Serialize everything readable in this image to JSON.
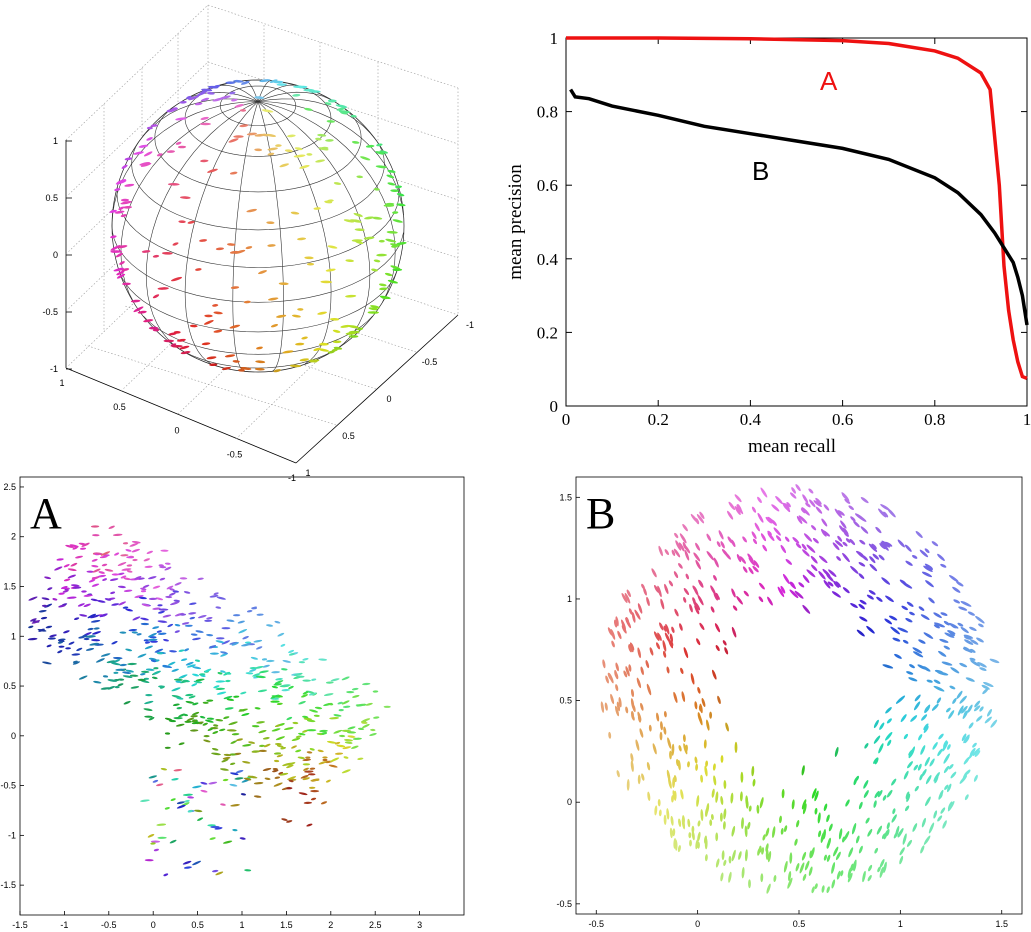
{
  "chart_data": [
    {
      "type": "scatter",
      "panel": "sphere-3d",
      "description_shown": "3D unit sphere with oriented glyphs",
      "z_ticks": [
        "1",
        "0.5",
        "0",
        "-0.5",
        "-1"
      ],
      "x_ticks": [
        "1",
        "0.5",
        "0",
        "-0.5",
        "-1"
      ],
      "y_ticks": [
        "-1",
        "-0.5",
        "0",
        "0.5",
        "1"
      ]
    },
    {
      "type": "line",
      "panel": "precision-recall",
      "xlabel": "mean recall",
      "ylabel": "mean precision",
      "xlim": [
        0,
        1
      ],
      "ylim": [
        0,
        1
      ],
      "x_ticks": [
        "0",
        "0.2",
        "0.4",
        "0.6",
        "0.8",
        "1"
      ],
      "y_ticks": [
        "0",
        "0.2",
        "0.4",
        "0.6",
        "0.8",
        "1"
      ],
      "series": [
        {
          "name": "A",
          "color": "#ee1111",
          "x": [
            0,
            0.2,
            0.4,
            0.6,
            0.7,
            0.8,
            0.85,
            0.9,
            0.92,
            0.94,
            0.95,
            0.96,
            0.97,
            0.98,
            0.99,
            1.0
          ],
          "y": [
            1.0,
            1.0,
            0.998,
            0.993,
            0.985,
            0.965,
            0.945,
            0.905,
            0.86,
            0.6,
            0.38,
            0.26,
            0.18,
            0.12,
            0.08,
            0.075
          ]
        },
        {
          "name": "B",
          "color": "#000000",
          "x": [
            0.01,
            0.02,
            0.05,
            0.1,
            0.2,
            0.3,
            0.4,
            0.5,
            0.6,
            0.7,
            0.8,
            0.85,
            0.9,
            0.93,
            0.95,
            0.97,
            0.98,
            0.99,
            1.0
          ],
          "y": [
            0.86,
            0.84,
            0.835,
            0.815,
            0.79,
            0.76,
            0.74,
            0.72,
            0.7,
            0.67,
            0.62,
            0.58,
            0.52,
            0.47,
            0.43,
            0.39,
            0.35,
            0.3,
            0.22
          ]
        }
      ]
    },
    {
      "type": "scatter",
      "panel": "A",
      "letter": "A",
      "xlim": [
        -1.5,
        3.5
      ],
      "ylim": [
        -1.8,
        2.6
      ],
      "x_ticks": [
        "-1.5",
        "-1",
        "-0.5",
        "0",
        "0.5",
        "1",
        "1.5",
        "2",
        "2.5",
        "3"
      ],
      "y_ticks": [
        "2.5",
        "2",
        "1.5",
        "1",
        "0.5",
        "0",
        "-0.5",
        "-1",
        "-1.5"
      ]
    },
    {
      "type": "scatter",
      "panel": "B",
      "letter": "B",
      "xlim": [
        -0.6,
        1.6
      ],
      "ylim": [
        -0.55,
        1.6
      ],
      "x_ticks": [
        "-0.5",
        "0",
        "0.5",
        "1",
        "1.5"
      ],
      "y_ticks": [
        "1.5",
        "1",
        "0.5",
        "0",
        "-0.5"
      ]
    }
  ]
}
